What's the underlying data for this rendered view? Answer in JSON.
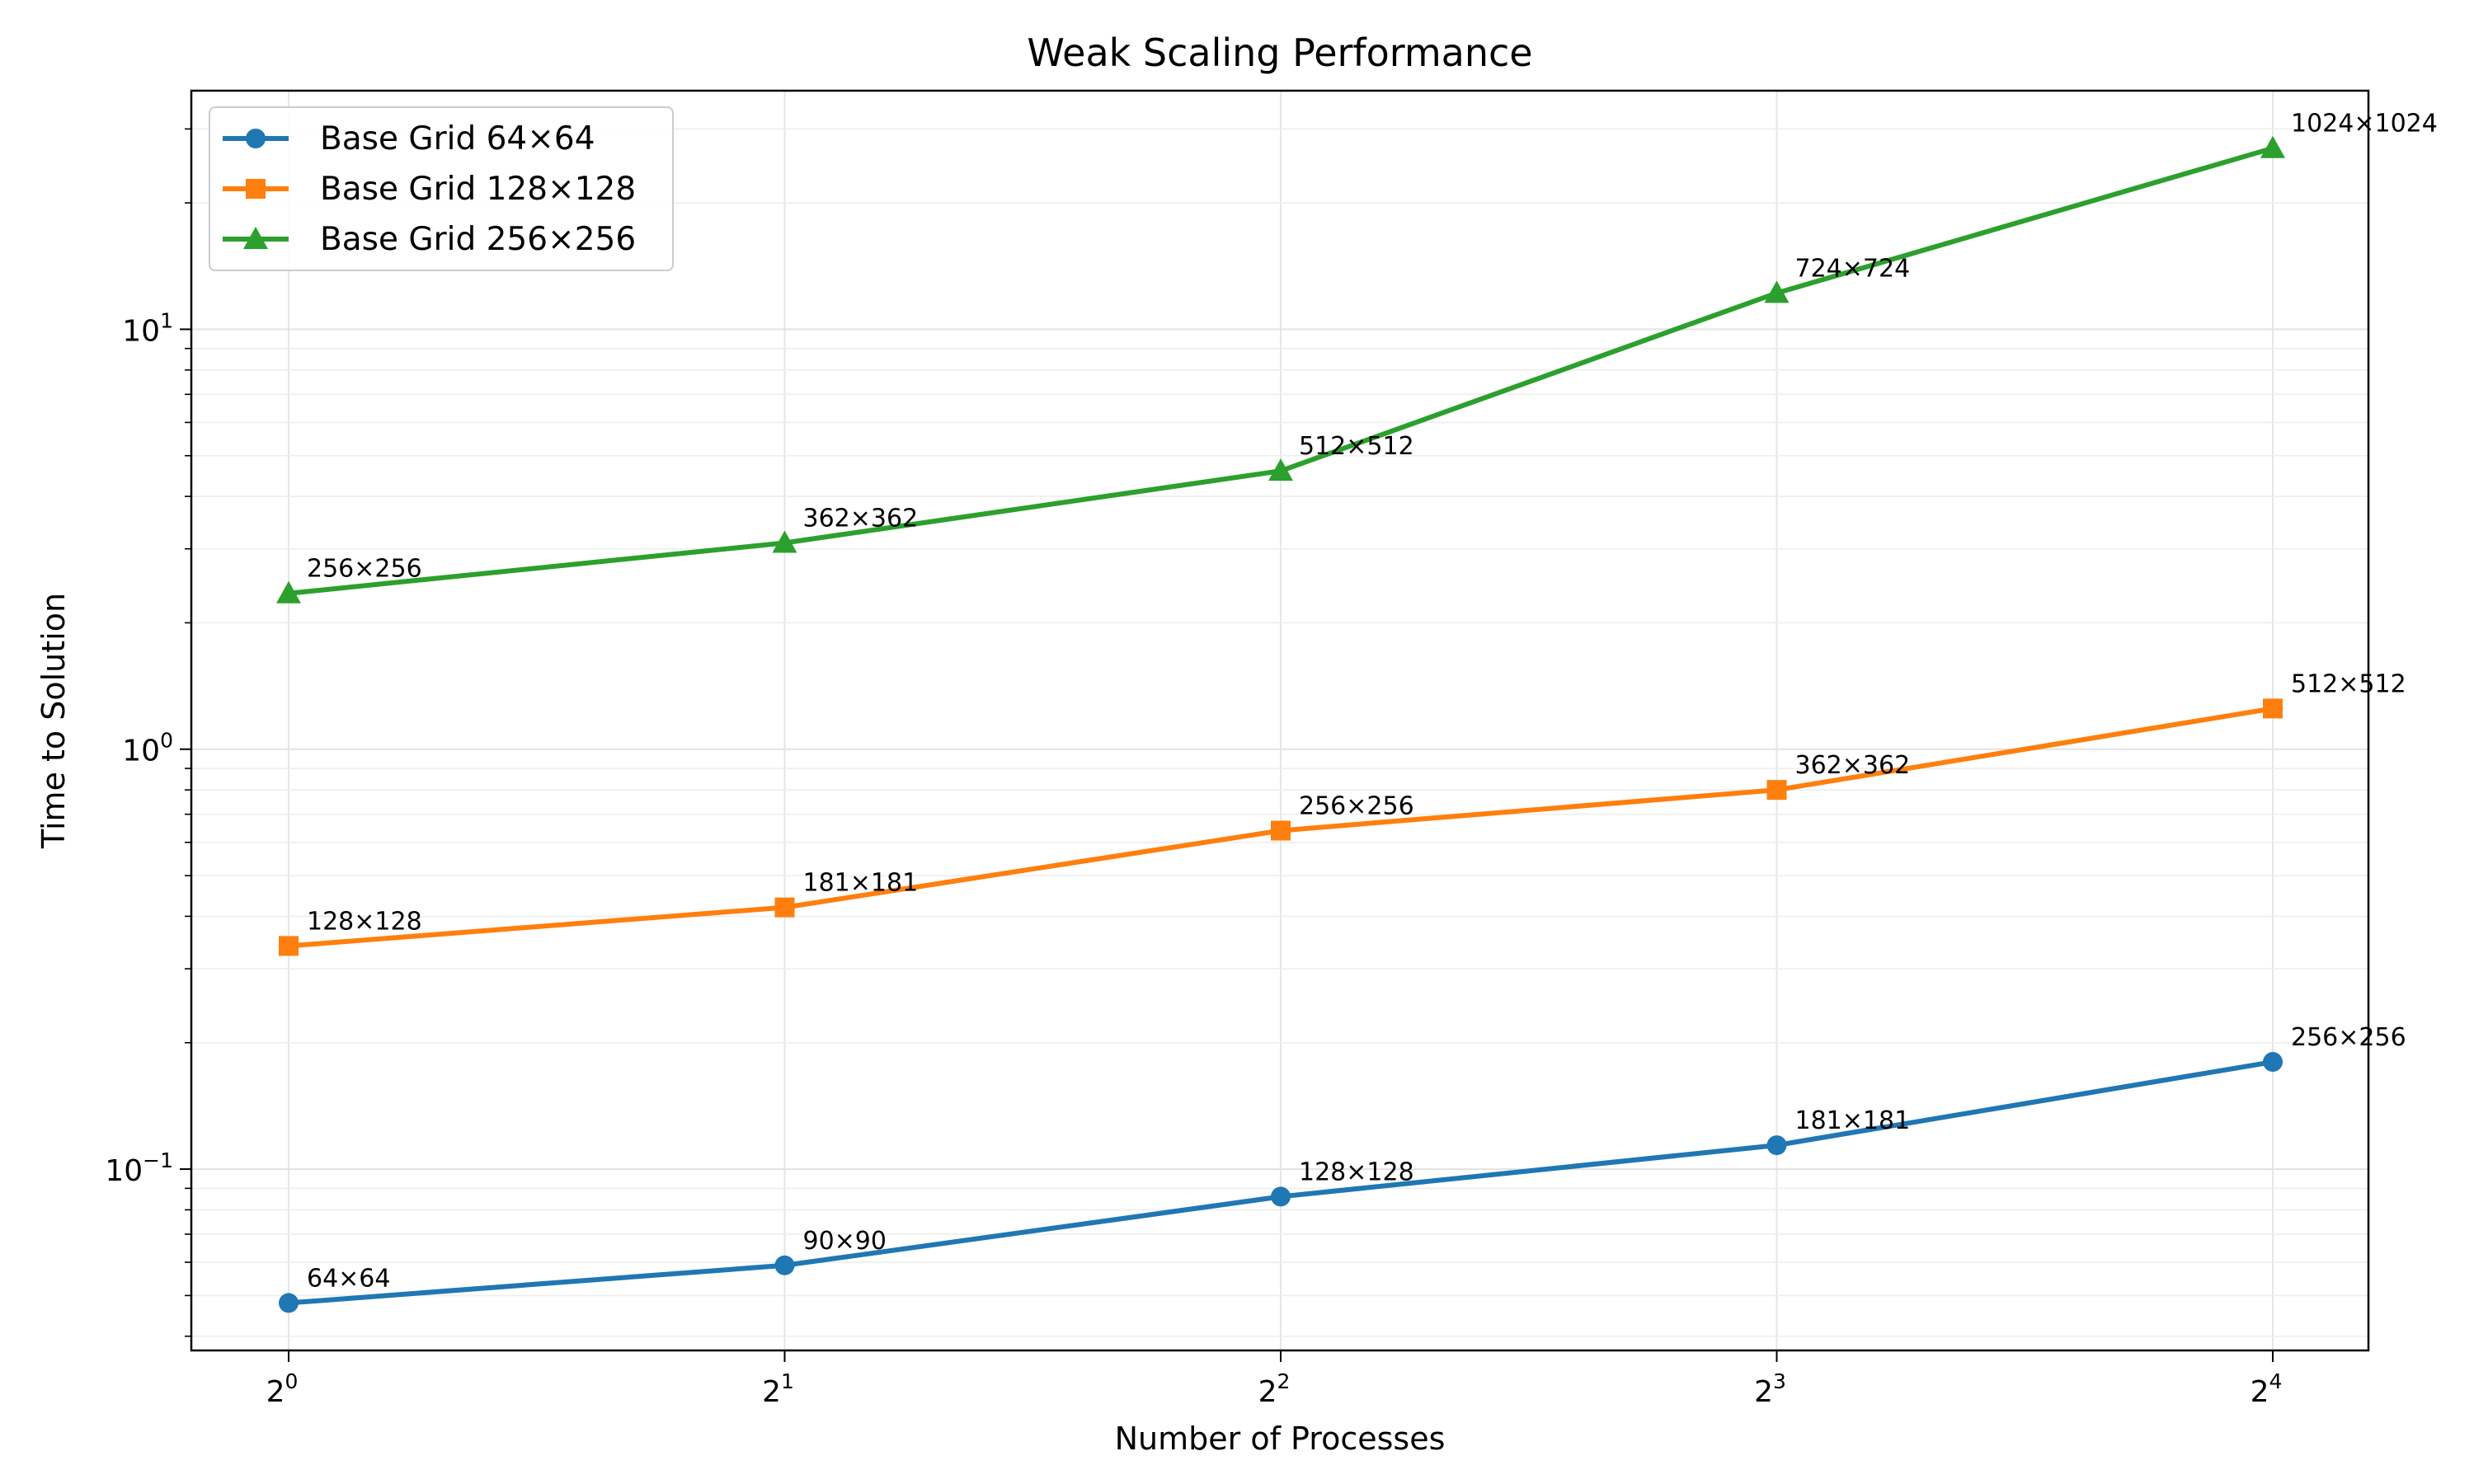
{
  "chart_data": {
    "type": "line",
    "title": "Weak Scaling Performance",
    "xlabel": "Number of Processes",
    "ylabel": "Time to Solution",
    "x": [
      1,
      2,
      4,
      8,
      16
    ],
    "x_scale": "log2",
    "y_scale": "log10",
    "ylim": [
      0.037,
      37
    ],
    "x_tick_labels": [
      {
        "base": "2",
        "exp": "0"
      },
      {
        "base": "2",
        "exp": "1"
      },
      {
        "base": "2",
        "exp": "2"
      },
      {
        "base": "2",
        "exp": "3"
      },
      {
        "base": "2",
        "exp": "4"
      }
    ],
    "y_tick_labels": [
      {
        "value": 0.1,
        "base": "10",
        "exp": "−1"
      },
      {
        "value": 1,
        "base": "10",
        "exp": "0"
      },
      {
        "value": 10,
        "base": "10",
        "exp": "1"
      }
    ],
    "grid": true,
    "legend_position": "top-left",
    "series": [
      {
        "name": "Base Grid 64×64",
        "color": "#1f77b4",
        "marker": "circle",
        "values": [
          0.048,
          0.059,
          0.086,
          0.114,
          0.18
        ],
        "labels": [
          "64×64",
          "90×90",
          "128×128",
          "181×181",
          "256×256"
        ]
      },
      {
        "name": "Base Grid 128×128",
        "color": "#ff7f0e",
        "marker": "square",
        "values": [
          0.34,
          0.42,
          0.64,
          0.8,
          1.25
        ],
        "labels": [
          "128×128",
          "181×181",
          "256×256",
          "362×362",
          "512×512"
        ]
      },
      {
        "name": "Base Grid 256×256",
        "color": "#2ca02c",
        "marker": "triangle",
        "values": [
          2.35,
          3.1,
          4.6,
          12.2,
          27.0
        ],
        "labels": [
          "256×256",
          "362×362",
          "512×512",
          "724×724",
          "1024×1024"
        ]
      }
    ]
  }
}
